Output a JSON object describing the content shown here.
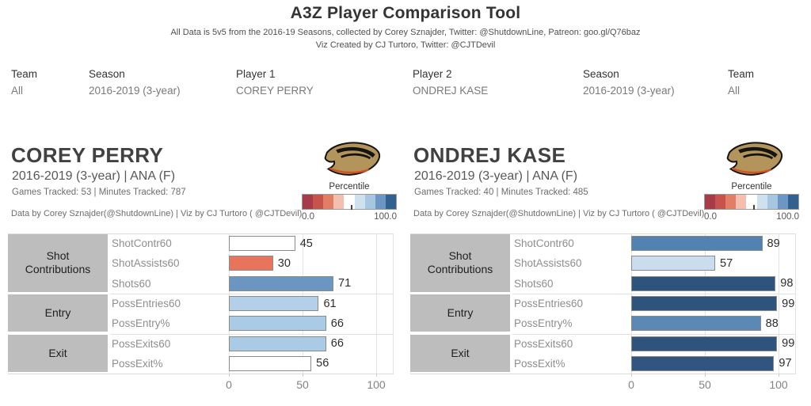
{
  "header": {
    "title": "A3Z Player Comparison Tool",
    "subtitle1": "All Data is 5v5 from the 2016-19 Seasons, collected by Corey Sznajder, Twitter: @ShutdownLine, Patreon: goo.gl/Q76baz",
    "subtitle2": "Viz Created by CJ Turtoro, Twitter: @CJTDevil"
  },
  "filters": [
    {
      "label": "Team",
      "value": "All"
    },
    {
      "label": "Season",
      "value": "2016-2019 (3-year)"
    },
    {
      "label": "Player 1",
      "value": "COREY PERRY"
    },
    {
      "label": "Player 2",
      "value": "ONDREJ KASE"
    },
    {
      "label": "Season",
      "value": "2016-2019 (3-year)"
    },
    {
      "label": "Team",
      "value": "All"
    }
  ],
  "legend": {
    "title": "Percentile",
    "min": "0.0",
    "max": "100.0",
    "colors": [
      "#a63b49",
      "#c6544d",
      "#e27e66",
      "#f4bfae",
      "#ffffff",
      "#cfe0ee",
      "#a7c6e1",
      "#6d96c2",
      "#32608f"
    ]
  },
  "players": [
    {
      "name": "COREY PERRY",
      "season_team": "2016-2019 (3-year) | ANA (F)",
      "tracked": "Games Tracked: 53  | Minutes Tracked: 787",
      "credit": "Data by Corey Sznajder(@ShutdownLine) | Viz by CJ Turtoro ( @CJTDevil)"
    },
    {
      "name": "ONDREJ KASE",
      "season_team": "2016-2019 (3-year) | ANA (F)",
      "tracked": "Games Tracked: 40  | Minutes Tracked: 485",
      "credit": "Data by Corey Sznajder(@ShutdownLine) | Viz by CJ Turtoro ( @CJTDevil)"
    }
  ],
  "chart_data": [
    {
      "type": "bar",
      "title": "COREY PERRY percentiles",
      "orientation": "horizontal",
      "xlim": [
        0,
        100
      ],
      "xticks": [
        0,
        50,
        100
      ],
      "grid": true,
      "groups": [
        {
          "label": "Shot Contributions",
          "span": 3
        },
        {
          "label": "Entry",
          "span": 2
        },
        {
          "label": "Exit",
          "span": 2
        }
      ],
      "categories": [
        "ShotContr60",
        "ShotAssists60",
        "Shots60",
        "PossEntries60",
        "PossEntry%",
        "PossExits60",
        "PossExit%"
      ],
      "values": [
        45,
        30,
        71,
        61,
        66,
        66,
        56
      ],
      "bar_colors": [
        "#ffffff",
        "#e8745c",
        "#6b96c2",
        "#b3d0e8",
        "#aacbe6",
        "#aacbe6",
        "#ffffff"
      ],
      "bar_border": "#8a8a8a"
    },
    {
      "type": "bar",
      "title": "ONDREJ KASE percentiles",
      "orientation": "horizontal",
      "xlim": [
        0,
        100
      ],
      "xticks": [
        0,
        50,
        100
      ],
      "grid": true,
      "groups": [
        {
          "label": "Shot Contributions",
          "span": 3
        },
        {
          "label": "Entry",
          "span": 2
        },
        {
          "label": "Exit",
          "span": 2
        }
      ],
      "categories": [
        "ShotContr60",
        "ShotAssists60",
        "Shots60",
        "PossEntries60",
        "PossEntry%",
        "PossExits60",
        "PossExit%"
      ],
      "values": [
        89,
        57,
        98,
        99,
        88,
        99,
        97
      ],
      "bar_colors": [
        "#5282b2",
        "#c9ddee",
        "#2e547e",
        "#2e547e",
        "#5c88b6",
        "#2e547e",
        "#30567f"
      ],
      "bar_border": "#8a8a8a"
    }
  ]
}
